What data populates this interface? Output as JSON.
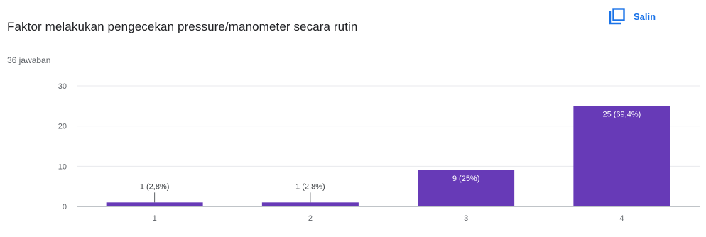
{
  "header": {
    "title": "Faktor melakukan pengecekan pressure/manometer secara rutin",
    "response_count": "36 jawaban",
    "copy_label": "Salin"
  },
  "colors": {
    "bar": "#673ab7",
    "accent": "#1a73e8",
    "grid": "#e8eaed"
  },
  "chart_data": {
    "type": "bar",
    "categories": [
      "1",
      "2",
      "3",
      "4"
    ],
    "values": [
      1,
      1,
      9,
      25
    ],
    "data_labels": [
      "1 (2,8%)",
      "1 (2,8%)",
      "9 (25%)",
      "25 (69,4%)"
    ],
    "y_ticks": [
      "0",
      "10",
      "20",
      "30"
    ],
    "ylim": [
      0,
      30
    ],
    "grid": true,
    "legend": "none"
  }
}
